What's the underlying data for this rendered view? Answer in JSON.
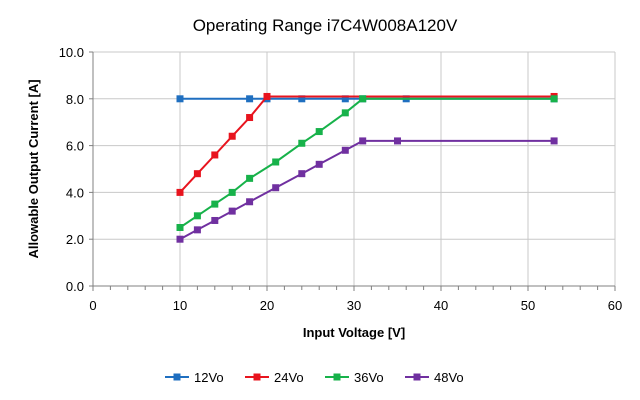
{
  "chart_data": {
    "type": "line",
    "title": "Operating Range i7C4W008A120V",
    "xlabel": "Input Voltage [V]",
    "ylabel": "Allowable Output Current [A]",
    "xlim": [
      0,
      60
    ],
    "ylim": [
      0,
      10
    ],
    "x_ticks": [
      "0",
      "10",
      "20",
      "30",
      "40",
      "50",
      "60"
    ],
    "y_ticks": [
      "0.0",
      "2.0",
      "4.0",
      "6.0",
      "8.0",
      "10.0"
    ],
    "x_tick_values": [
      0,
      10,
      20,
      30,
      40,
      50,
      60
    ],
    "y_tick_values": [
      0,
      2,
      4,
      6,
      8,
      10
    ],
    "grid": true,
    "legend_position": "bottom",
    "series": [
      {
        "name": "12Vo",
        "color": "#1f6fc0",
        "x": [
          10,
          18,
          20,
          24,
          29,
          31,
          36,
          53
        ],
        "y": [
          8.0,
          8.0,
          8.0,
          8.0,
          8.0,
          8.0,
          8.0,
          8.0
        ]
      },
      {
        "name": "24Vo",
        "color": "#e8141e",
        "x": [
          10,
          12,
          14,
          16,
          18,
          20,
          53
        ],
        "y": [
          4.0,
          4.8,
          5.6,
          6.4,
          7.2,
          8.1,
          8.1
        ]
      },
      {
        "name": "36Vo",
        "color": "#17b24a",
        "x": [
          10,
          12,
          14,
          16,
          18,
          21,
          24,
          26,
          29,
          31,
          53
        ],
        "y": [
          2.5,
          3.0,
          3.5,
          4.0,
          4.6,
          5.3,
          6.1,
          6.6,
          7.4,
          8.0,
          8.0
        ]
      },
      {
        "name": "48Vo",
        "color": "#7030a0",
        "x": [
          10,
          12,
          14,
          16,
          18,
          21,
          24,
          26,
          29,
          31,
          35,
          53
        ],
        "y": [
          2.0,
          2.4,
          2.8,
          3.2,
          3.6,
          4.2,
          4.8,
          5.2,
          5.8,
          6.2,
          6.2,
          6.2
        ]
      }
    ]
  }
}
